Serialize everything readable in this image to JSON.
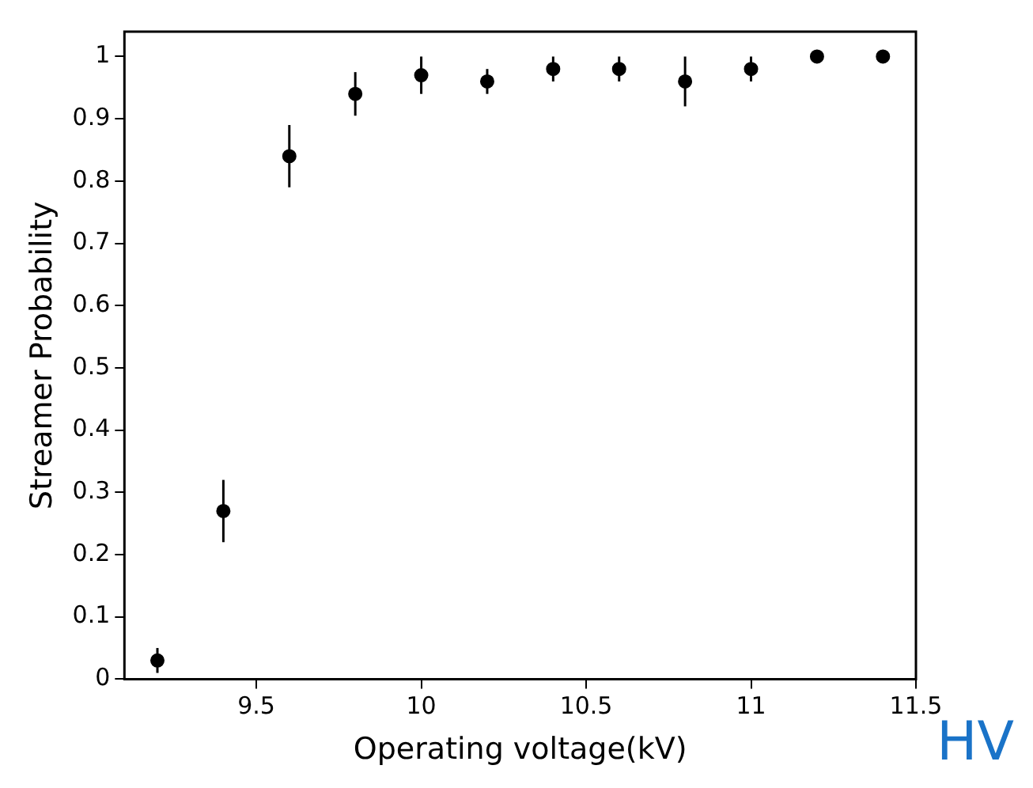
{
  "chart_data": {
    "type": "scatter",
    "xlabel": "Operating voltage(kV)",
    "ylabel": "Streamer Probability",
    "x": [
      9.2,
      9.4,
      9.6,
      9.8,
      10,
      10.2,
      10.4,
      10.6,
      10.8,
      11,
      11.2,
      11.4
    ],
    "series": [
      {
        "color": "#000000",
        "values": [
          0.03,
          0.27,
          0.84,
          0.94,
          0.97,
          0.96,
          0.98,
          0.98,
          0.96,
          0.98,
          1.0,
          1.0
        ],
        "errors": [
          0.02,
          0.05,
          0.05,
          0.035,
          0.03,
          0.02,
          0.02,
          0.02,
          0.04,
          0.02,
          null,
          null
        ]
      }
    ],
    "xlim": [
      9.1,
      11.5
    ],
    "xticks": [
      9.5,
      10,
      10.5,
      11,
      11.5
    ],
    "ylim": [
      0,
      1.04
    ],
    "yticks": [
      0,
      0.1,
      0.2,
      0.3,
      0.4,
      0.5,
      0.6,
      0.7,
      0.8,
      0.9,
      1
    ],
    "marker": "circle",
    "grid": false,
    "legend": false,
    "annotations": [
      "HV"
    ]
  }
}
